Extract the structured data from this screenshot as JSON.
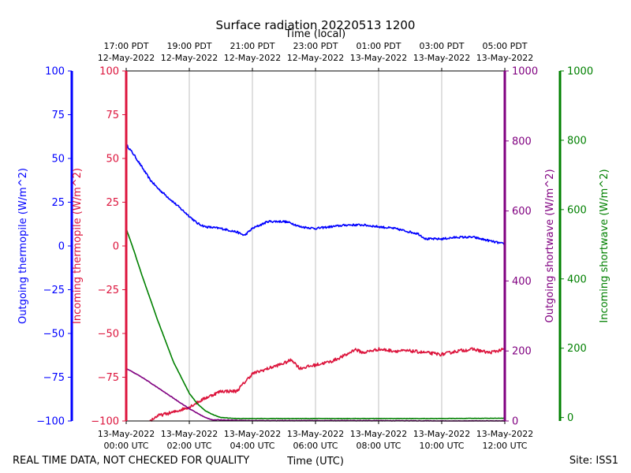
{
  "chart_data": {
    "type": "line",
    "title": "Surface radiation 20220513 1200",
    "top_axis_title": "Time (local)",
    "xlabel": "Time (UTC)",
    "footer_left": "REAL TIME DATA, NOT CHECKED FOR QUALITY",
    "footer_right": "Site: ISS1",
    "x_range_hours": [
      0,
      12
    ],
    "utc_ticks": [
      {
        "hour": 0,
        "line1": "13-May-2022",
        "line2": "00:00 UTC"
      },
      {
        "hour": 2,
        "line1": "13-May-2022",
        "line2": "02:00 UTC"
      },
      {
        "hour": 4,
        "line1": "13-May-2022",
        "line2": "04:00 UTC"
      },
      {
        "hour": 6,
        "line1": "13-May-2022",
        "line2": "06:00 UTC"
      },
      {
        "hour": 8,
        "line1": "13-May-2022",
        "line2": "08:00 UTC"
      },
      {
        "hour": 10,
        "line1": "13-May-2022",
        "line2": "10:00 UTC"
      },
      {
        "hour": 12,
        "line1": "13-May-2022",
        "line2": "12:00 UTC"
      }
    ],
    "local_ticks": [
      {
        "hour": 0,
        "line1": "17:00 PDT",
        "line2": "12-May-2022"
      },
      {
        "hour": 2,
        "line1": "19:00 PDT",
        "line2": "12-May-2022"
      },
      {
        "hour": 4,
        "line1": "21:00 PDT",
        "line2": "12-May-2022"
      },
      {
        "hour": 6,
        "line1": "23:00 PDT",
        "line2": "12-May-2022"
      },
      {
        "hour": 8,
        "line1": "01:00 PDT",
        "line2": "13-May-2022"
      },
      {
        "hour": 10,
        "line1": "03:00 PDT",
        "line2": "13-May-2022"
      },
      {
        "hour": 12,
        "line1": "05:00 PDT",
        "line2": "13-May-2022"
      }
    ],
    "axes": {
      "outgoing_thermopile": {
        "label": "Outgoing thermopile (W/m^2)",
        "color": "#0000ff",
        "ylim": [
          -100,
          100
        ],
        "ticks": [
          -100,
          -75,
          -50,
          -25,
          0,
          25,
          50,
          75,
          100
        ]
      },
      "incoming_thermopile": {
        "label": "Incoming thermopile (W/m^2)",
        "color": "#dc143c",
        "ylim": [
          -100,
          100
        ],
        "ticks": [
          -100,
          -75,
          -50,
          -25,
          0,
          25,
          50,
          75,
          100
        ]
      },
      "outgoing_shortwave": {
        "label": "Outgoing shortwave (W/m^2)",
        "color": "#800080",
        "ylim": [
          0,
          1000
        ],
        "ticks": [
          0,
          200,
          400,
          600,
          800,
          1000
        ]
      },
      "incoming_shortwave": {
        "label": "Incoming shortwave (W/m^2)",
        "color": "#008000",
        "ylim": [
          -10,
          1000
        ],
        "ticks": [
          0,
          200,
          400,
          600,
          800,
          1000
        ]
      }
    },
    "series": [
      {
        "name": "Outgoing thermopile",
        "axis": "outgoing_thermopile",
        "color": "#0000ff",
        "noise": 0.6,
        "x": [
          0,
          0.25,
          0.5,
          0.75,
          1,
          1.5,
          2,
          2.25,
          2.5,
          3,
          3.5,
          3.75,
          4,
          4.5,
          5,
          5.25,
          5.5,
          6,
          6.5,
          7,
          7.5,
          8,
          8.5,
          9,
          9.25,
          9.5,
          10,
          10.5,
          11,
          11.5,
          12
        ],
        "values": [
          58,
          52,
          45,
          38,
          33,
          25,
          17,
          13,
          11,
          10,
          8,
          6,
          10,
          14,
          14,
          13,
          11,
          10,
          11,
          12,
          12,
          11,
          10,
          8,
          7,
          4,
          4,
          5,
          5,
          3,
          1
        ]
      },
      {
        "name": "Incoming thermopile",
        "axis": "incoming_thermopile",
        "color": "#dc143c",
        "noise": 0.9,
        "x": [
          0.75,
          1,
          1.5,
          2,
          2.5,
          3,
          3.5,
          3.75,
          4,
          4.5,
          5,
          5.25,
          5.5,
          6,
          6.5,
          7,
          7.25,
          7.5,
          8,
          8.5,
          9,
          9.5,
          10,
          10.5,
          11,
          11.5,
          12
        ],
        "values": [
          -100,
          -97,
          -95,
          -92,
          -87,
          -83,
          -83,
          -78,
          -73,
          -70,
          -67,
          -65,
          -70,
          -68,
          -66,
          -62,
          -59,
          -61,
          -59,
          -60,
          -60,
          -61,
          -62,
          -60,
          -59,
          -61,
          -59
        ]
      },
      {
        "name": "Outgoing shortwave",
        "axis": "outgoing_shortwave",
        "color": "#800080",
        "noise": 0.8,
        "x": [
          0,
          0.5,
          1,
          1.5,
          2,
          2.5,
          2.75,
          3,
          4,
          6,
          8,
          10,
          12
        ],
        "values": [
          150,
          125,
          95,
          65,
          35,
          10,
          3,
          3,
          1,
          1,
          1,
          0,
          0
        ]
      },
      {
        "name": "Incoming shortwave",
        "axis": "incoming_shortwave",
        "color": "#008000",
        "noise": 0.5,
        "x": [
          0,
          0.25,
          0.5,
          1,
          1.5,
          2,
          2.25,
          2.5,
          2.75,
          3,
          3.5,
          4,
          6,
          8,
          10,
          12
        ],
        "values": [
          545,
          480,
          410,
          280,
          160,
          70,
          40,
          20,
          8,
          0,
          -3,
          -3,
          -3,
          -3,
          -3,
          -2
        ]
      }
    ]
  }
}
